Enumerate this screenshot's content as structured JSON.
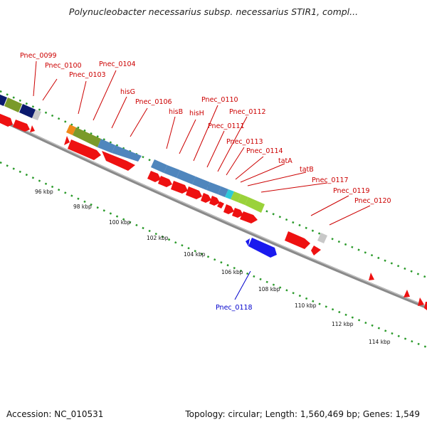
{
  "title": "Polynucleobacter necessarius subsp. necessarius STIR1, compl...",
  "footer": {
    "accession": "Accession: NC_010531",
    "summary": "Topology: circular; Length: 1,560,469 bp; Genes: 1,549"
  },
  "colors": {
    "backbone": "#8a8a8a",
    "tick": "#2a9a2a",
    "forward_gene": "#ee1111",
    "reverse_gene": "#1a1aee",
    "label_forward": "#cc0000",
    "label_reverse": "#0000cc",
    "cog_navy": "#0b1a6e",
    "cog_olive": "#7a9a2a",
    "cog_steelblue": "#4f86bd",
    "cog_orange": "#ef8a1a",
    "cog_cyan": "#2ec8d8",
    "cog_lime": "#9ad23a",
    "cog_gray": "#c8c8c8"
  },
  "kbp_labels": [
    "96 kbp",
    "98 kbp",
    "100 kbp",
    "102 kbp",
    "104 kbp",
    "106 kbp",
    "108 kbp",
    "110 kbp",
    "112 kbp",
    "114 kbp"
  ],
  "gene_labels": [
    {
      "text": "Pnec_0099",
      "strand": "forward"
    },
    {
      "text": "Pnec_0100",
      "strand": "forward"
    },
    {
      "text": "Pnec_0103",
      "strand": "forward"
    },
    {
      "text": "Pnec_0104",
      "strand": "forward"
    },
    {
      "text": "hisG",
      "strand": "forward"
    },
    {
      "text": "Pnec_0106",
      "strand": "forward"
    },
    {
      "text": "hisB",
      "strand": "forward"
    },
    {
      "text": "hisH",
      "strand": "forward"
    },
    {
      "text": "Pnec_0110",
      "strand": "forward"
    },
    {
      "text": "Pnec_0111",
      "strand": "forward"
    },
    {
      "text": "Pnec_0112",
      "strand": "forward"
    },
    {
      "text": "Pnec_0113",
      "strand": "forward"
    },
    {
      "text": "Pnec_0114",
      "strand": "forward"
    },
    {
      "text": "tatA",
      "strand": "forward"
    },
    {
      "text": "tatB",
      "strand": "forward"
    },
    {
      "text": "Pnec_0117",
      "strand": "forward"
    },
    {
      "text": "Pnec_0119",
      "strand": "forward"
    },
    {
      "text": "Pnec_0120",
      "strand": "forward"
    },
    {
      "text": "Pnec_0118",
      "strand": "reverse"
    }
  ]
}
